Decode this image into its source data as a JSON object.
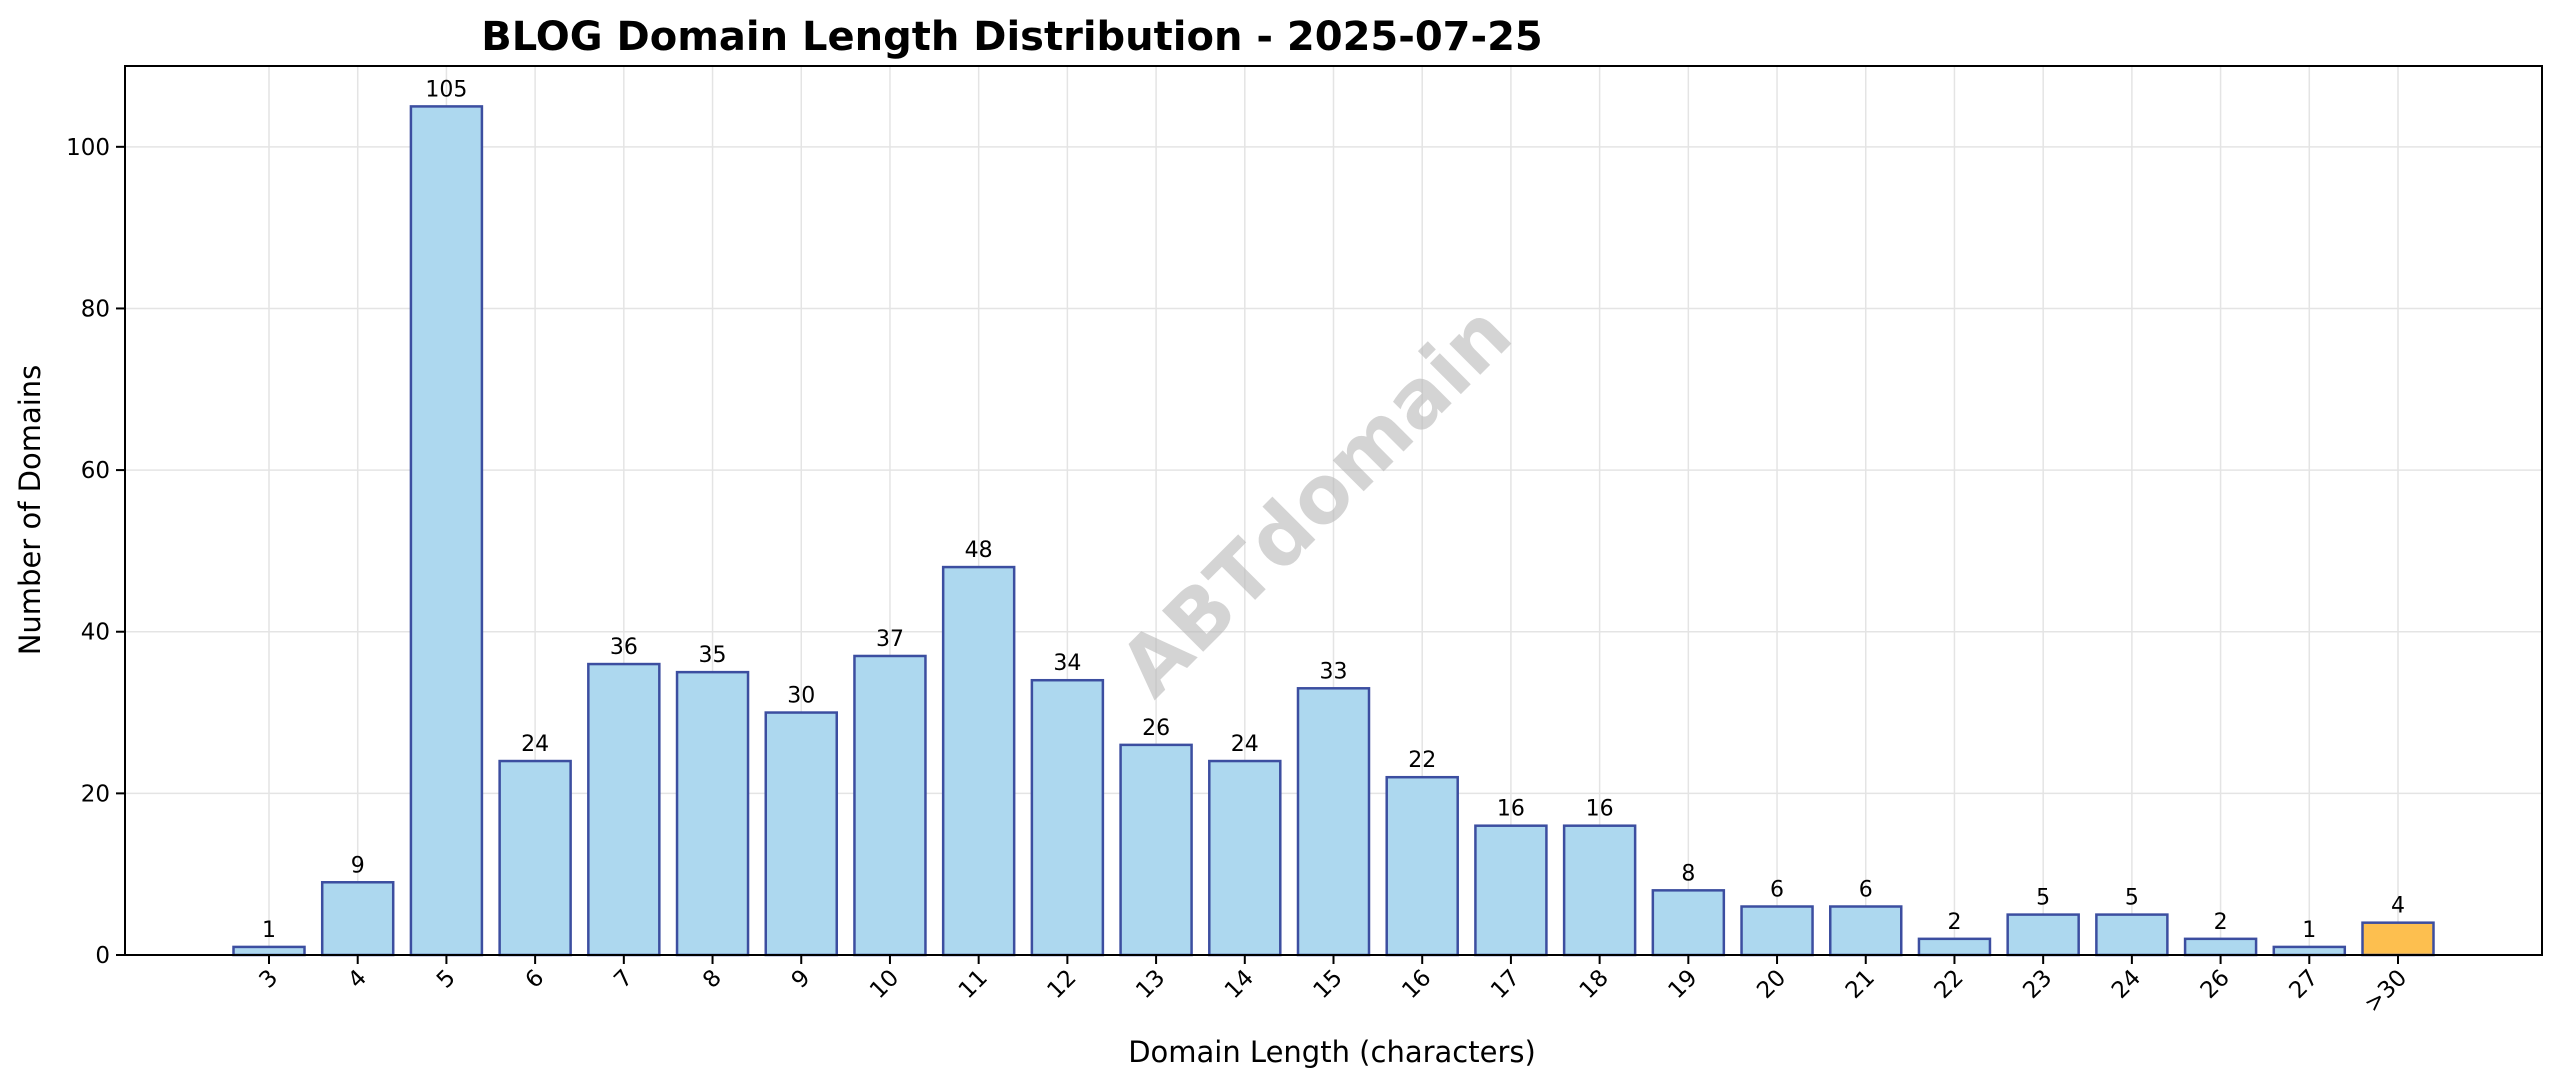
{
  "chart_data": {
    "type": "bar",
    "title": "BLOG Domain Length Distribution - 2025-07-25",
    "xlabel": "Domain Length (characters)",
    "ylabel": "Number of Domains",
    "categories": [
      "3",
      "4",
      "5",
      "6",
      "7",
      "8",
      "9",
      "10",
      "11",
      "12",
      "13",
      "14",
      "15",
      "16",
      "17",
      "18",
      "19",
      "20",
      "21",
      "22",
      "23",
      "24",
      "26",
      "27",
      ">30"
    ],
    "values": [
      1,
      9,
      105,
      24,
      36,
      35,
      30,
      37,
      48,
      34,
      26,
      24,
      33,
      22,
      16,
      16,
      8,
      6,
      6,
      2,
      5,
      5,
      2,
      1,
      4
    ],
    "highlight_category": ">30",
    "colors": {
      "bar": "#add8ef",
      "highlight": "#fdbf4f",
      "edge": "#3c4ea0",
      "grid": "#e4e4e4"
    },
    "ylim": [
      0,
      110
    ],
    "yticks": [
      0,
      20,
      40,
      60,
      80,
      100
    ],
    "grid": true,
    "watermark": "ABTdomain"
  }
}
